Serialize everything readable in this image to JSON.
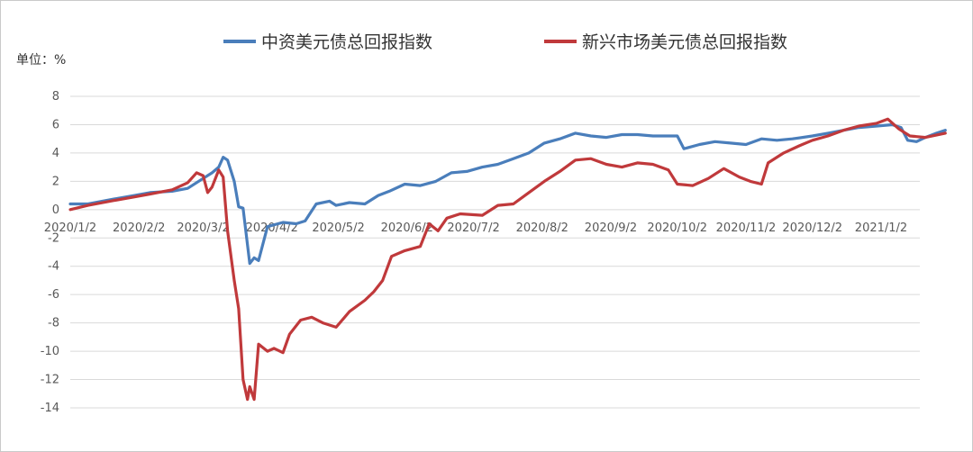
{
  "chart_data": {
    "type": "line",
    "unit_label": "单位：%",
    "ylim": [
      -14,
      8
    ],
    "yticks": [
      8,
      6,
      4,
      2,
      0,
      -2,
      -4,
      -6,
      -8,
      -10,
      -12,
      -14
    ],
    "xticks": [
      "2020/1/2",
      "2020/2/2",
      "2020/3/2",
      "2020/4/2",
      "2020/5/2",
      "2020/6/2",
      "2020/7/2",
      "2020/8/2",
      "2020/9/2",
      "2020/10/2",
      "2020/11/2",
      "2020/12/2",
      "2021/1/2"
    ],
    "grid": true,
    "legend_position": "top",
    "series": [
      {
        "name": "中资美元债总回报指数",
        "color": "#4a7ebb",
        "points": [
          [
            "2020/1/2",
            0.4
          ],
          [
            "2020/1/10",
            0.4
          ],
          [
            "2020/1/20",
            0.7
          ],
          [
            "2020/1/31",
            1.0
          ],
          [
            "2020/2/7",
            1.2
          ],
          [
            "2020/2/17",
            1.3
          ],
          [
            "2020/2/24",
            1.5
          ],
          [
            "2020/3/2",
            2.2
          ],
          [
            "2020/3/6",
            2.6
          ],
          [
            "2020/3/9",
            3.0
          ],
          [
            "2020/3/11",
            3.7
          ],
          [
            "2020/3/13",
            3.5
          ],
          [
            "2020/3/16",
            2.0
          ],
          [
            "2020/3/18",
            0.2
          ],
          [
            "2020/3/20",
            0.1
          ],
          [
            "2020/3/23",
            -3.8
          ],
          [
            "2020/3/25",
            -3.4
          ],
          [
            "2020/3/27",
            -3.6
          ],
          [
            "2020/3/31",
            -1.2
          ],
          [
            "2020/4/7",
            -0.9
          ],
          [
            "2020/4/13",
            -1.0
          ],
          [
            "2020/4/17",
            -0.8
          ],
          [
            "2020/4/22",
            0.4
          ],
          [
            "2020/4/28",
            0.6
          ],
          [
            "2020/5/1",
            0.3
          ],
          [
            "2020/5/7",
            0.5
          ],
          [
            "2020/5/14",
            0.4
          ],
          [
            "2020/5/20",
            1.0
          ],
          [
            "2020/5/25",
            1.3
          ],
          [
            "2020/6/1",
            1.8
          ],
          [
            "2020/6/8",
            1.7
          ],
          [
            "2020/6/15",
            2.0
          ],
          [
            "2020/6/22",
            2.6
          ],
          [
            "2020/6/29",
            2.7
          ],
          [
            "2020/7/6",
            3.0
          ],
          [
            "2020/7/13",
            3.2
          ],
          [
            "2020/7/20",
            3.6
          ],
          [
            "2020/7/27",
            4.0
          ],
          [
            "2020/8/3",
            4.7
          ],
          [
            "2020/8/10",
            5.0
          ],
          [
            "2020/8/17",
            5.4
          ],
          [
            "2020/8/24",
            5.2
          ],
          [
            "2020/8/31",
            5.1
          ],
          [
            "2020/9/7",
            5.3
          ],
          [
            "2020/9/14",
            5.3
          ],
          [
            "2020/9/21",
            5.2
          ],
          [
            "2020/9/28",
            5.2
          ],
          [
            "2020/10/2",
            5.2
          ],
          [
            "2020/10/5",
            4.3
          ],
          [
            "2020/10/12",
            4.6
          ],
          [
            "2020/10/19",
            4.8
          ],
          [
            "2020/10/26",
            4.7
          ],
          [
            "2020/11/2",
            4.6
          ],
          [
            "2020/11/9",
            5.0
          ],
          [
            "2020/11/16",
            4.9
          ],
          [
            "2020/11/23",
            5.0
          ],
          [
            "2020/12/2",
            5.2
          ],
          [
            "2020/12/9",
            5.4
          ],
          [
            "2020/12/16",
            5.6
          ],
          [
            "2020/12/23",
            5.8
          ],
          [
            "2020/12/31",
            5.9
          ],
          [
            "2021/1/7",
            6.0
          ],
          [
            "2021/1/11",
            5.8
          ],
          [
            "2021/1/14",
            4.9
          ],
          [
            "2021/1/18",
            4.8
          ],
          [
            "2021/1/22",
            5.1
          ],
          [
            "2021/1/27",
            5.4
          ],
          [
            "2021/1/31",
            5.6
          ]
        ]
      },
      {
        "name": "新兴市场美元债总回报指数",
        "color": "#c0393b",
        "points": [
          [
            "2020/1/2",
            0.0
          ],
          [
            "2020/1/10",
            0.3
          ],
          [
            "2020/1/20",
            0.6
          ],
          [
            "2020/1/31",
            0.9
          ],
          [
            "2020/2/7",
            1.1
          ],
          [
            "2020/2/17",
            1.4
          ],
          [
            "2020/2/24",
            1.9
          ],
          [
            "2020/2/28",
            2.6
          ],
          [
            "2020/3/2",
            2.4
          ],
          [
            "2020/3/4",
            1.2
          ],
          [
            "2020/3/6",
            1.6
          ],
          [
            "2020/3/9",
            2.8
          ],
          [
            "2020/3/11",
            2.3
          ],
          [
            "2020/3/13",
            -1.5
          ],
          [
            "2020/3/16",
            -5.0
          ],
          [
            "2020/3/18",
            -7.0
          ],
          [
            "2020/3/20",
            -12.0
          ],
          [
            "2020/3/22",
            -13.4
          ],
          [
            "2020/3/23",
            -12.5
          ],
          [
            "2020/3/25",
            -13.4
          ],
          [
            "2020/3/27",
            -9.5
          ],
          [
            "2020/3/31",
            -10.0
          ],
          [
            "2020/4/3",
            -9.8
          ],
          [
            "2020/4/7",
            -10.1
          ],
          [
            "2020/4/10",
            -8.8
          ],
          [
            "2020/4/15",
            -7.8
          ],
          [
            "2020/4/20",
            -7.6
          ],
          [
            "2020/4/25",
            -8.0
          ],
          [
            "2020/5/1",
            -8.3
          ],
          [
            "2020/5/7",
            -7.2
          ],
          [
            "2020/5/14",
            -6.4
          ],
          [
            "2020/5/18",
            -5.8
          ],
          [
            "2020/5/22",
            -5.0
          ],
          [
            "2020/5/26",
            -3.3
          ],
          [
            "2020/6/1",
            -2.9
          ],
          [
            "2020/6/8",
            -2.6
          ],
          [
            "2020/6/12",
            -1.0
          ],
          [
            "2020/6/16",
            -1.5
          ],
          [
            "2020/6/20",
            -0.6
          ],
          [
            "2020/6/26",
            -0.3
          ],
          [
            "2020/7/6",
            -0.4
          ],
          [
            "2020/7/13",
            0.3
          ],
          [
            "2020/7/20",
            0.4
          ],
          [
            "2020/7/27",
            1.2
          ],
          [
            "2020/8/3",
            2.0
          ],
          [
            "2020/8/10",
            2.7
          ],
          [
            "2020/8/17",
            3.5
          ],
          [
            "2020/8/24",
            3.6
          ],
          [
            "2020/8/31",
            3.2
          ],
          [
            "2020/9/7",
            3.0
          ],
          [
            "2020/9/14",
            3.3
          ],
          [
            "2020/9/21",
            3.2
          ],
          [
            "2020/9/28",
            2.8
          ],
          [
            "2020/10/2",
            1.8
          ],
          [
            "2020/10/9",
            1.7
          ],
          [
            "2020/10/16",
            2.2
          ],
          [
            "2020/10/23",
            2.9
          ],
          [
            "2020/10/30",
            2.3
          ],
          [
            "2020/11/4",
            2.0
          ],
          [
            "2020/11/9",
            1.8
          ],
          [
            "2020/11/12",
            3.3
          ],
          [
            "2020/11/19",
            4.0
          ],
          [
            "2020/11/26",
            4.5
          ],
          [
            "2020/12/2",
            4.9
          ],
          [
            "2020/12/9",
            5.2
          ],
          [
            "2020/12/16",
            5.6
          ],
          [
            "2020/12/23",
            5.9
          ],
          [
            "2020/12/31",
            6.1
          ],
          [
            "2021/1/5",
            6.4
          ],
          [
            "2021/1/10",
            5.7
          ],
          [
            "2021/1/15",
            5.2
          ],
          [
            "2021/1/22",
            5.1
          ],
          [
            "2021/1/31",
            5.4
          ]
        ]
      }
    ]
  }
}
